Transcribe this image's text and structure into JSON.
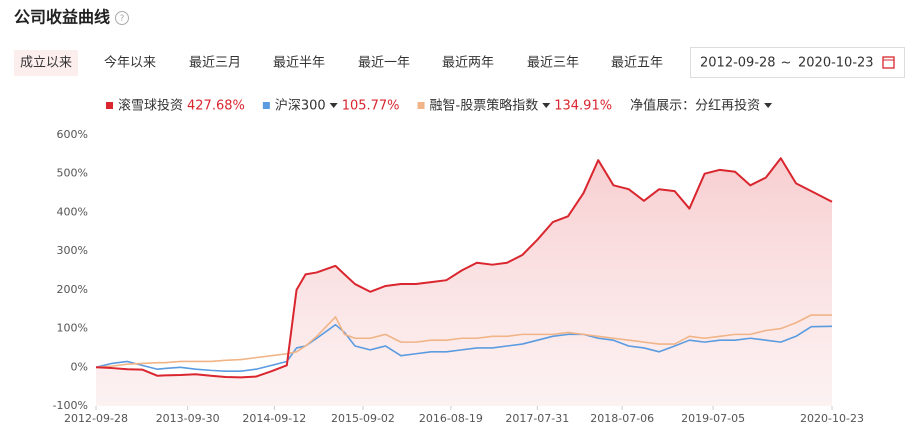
{
  "header": {
    "title": "公司收益曲线"
  },
  "tabs": [
    "成立以来",
    "今年以来",
    "最近三月",
    "最近半年",
    "最近一年",
    "最近两年",
    "最近三年",
    "最近五年"
  ],
  "active_tab": 0,
  "date_range": {
    "start": "2012-09-28",
    "separator": "~",
    "end": "2020-10-23"
  },
  "nav_display": "净值展示：分红再投资",
  "chart_data": {
    "type": "line",
    "x": [
      "2012-09-28",
      "2012-12-01",
      "2013-02-01",
      "2013-04-01",
      "2013-06-01",
      "2013-07-01",
      "2013-09-01",
      "2013-11-01",
      "2014-01-01",
      "2014-03-01",
      "2014-05-01",
      "2014-07-01",
      "2014-09-01",
      "2014-11-01",
      "2014-12-10",
      "2015-01-15",
      "2015-03-01",
      "2015-05-15",
      "2015-06-20",
      "2015-08-01",
      "2015-10-01",
      "2015-12-01",
      "2016-02-01",
      "2016-04-01",
      "2016-06-01",
      "2016-08-01",
      "2016-10-01",
      "2016-12-01",
      "2017-02-01",
      "2017-04-01",
      "2017-06-01",
      "2017-08-01",
      "2017-10-01",
      "2017-12-01",
      "2018-02-01",
      "2018-04-01",
      "2018-06-01",
      "2018-08-01",
      "2018-10-01",
      "2018-12-01",
      "2019-02-01",
      "2019-04-01",
      "2019-06-01",
      "2019-08-01",
      "2019-10-01",
      "2019-12-01",
      "2020-02-01",
      "2020-04-01",
      "2020-06-01",
      "2020-08-01",
      "2020-10-23"
    ],
    "series": [
      {
        "name": "滚雪球投资",
        "color": "#d9262f",
        "area": true,
        "value_label": "427.68%",
        "values": [
          0,
          -2,
          -5,
          -6,
          -22,
          -21,
          -20,
          -18,
          -22,
          -25,
          -26,
          -24,
          -10,
          5,
          200,
          240,
          245,
          262,
          240,
          215,
          195,
          210,
          215,
          215,
          220,
          225,
          250,
          270,
          265,
          270,
          290,
          330,
          375,
          390,
          450,
          535,
          470,
          460,
          430,
          460,
          455,
          410,
          500,
          510,
          505,
          470,
          490,
          540,
          475,
          455,
          427.68
        ]
      },
      {
        "name": "沪深300",
        "color": "#5b9be0",
        "area": false,
        "value_label": "105.77%",
        "values": [
          0,
          10,
          15,
          5,
          -5,
          -3,
          0,
          -5,
          -8,
          -10,
          -10,
          -5,
          5,
          15,
          50,
          55,
          75,
          110,
          90,
          55,
          45,
          55,
          30,
          35,
          40,
          40,
          45,
          50,
          50,
          55,
          60,
          70,
          80,
          85,
          85,
          75,
          70,
          55,
          50,
          40,
          55,
          70,
          65,
          70,
          70,
          75,
          70,
          65,
          80,
          105,
          105.77
        ]
      },
      {
        "name": "融智-股票策略指数",
        "color": "#f0b487",
        "area": false,
        "value_label": "134.91%",
        "values": [
          0,
          3,
          8,
          10,
          12,
          12,
          15,
          15,
          15,
          18,
          20,
          25,
          30,
          35,
          40,
          55,
          80,
          130,
          85,
          75,
          75,
          85,
          65,
          65,
          70,
          70,
          75,
          75,
          80,
          80,
          85,
          85,
          85,
          90,
          85,
          80,
          75,
          70,
          65,
          60,
          60,
          80,
          75,
          80,
          85,
          85,
          95,
          100,
          115,
          135,
          134.91
        ]
      }
    ],
    "xlim": [
      "2012-09-28",
      "2020-10-23"
    ],
    "xticks": [
      "2012-09-28",
      "2013-09-30",
      "2014-09-12",
      "2015-09-02",
      "2016-08-19",
      "2017-07-31",
      "2018-07-06",
      "2019-07-05",
      "2020-10-23"
    ],
    "ylim": [
      -100,
      600
    ],
    "yticks": [
      {
        "value": 600,
        "label": "600%"
      },
      {
        "value": 500,
        "label": "500%"
      },
      {
        "value": 400,
        "label": "400%"
      },
      {
        "value": 300,
        "label": "300%"
      },
      {
        "value": 200,
        "label": "200%"
      },
      {
        "value": 100,
        "label": "100%"
      },
      {
        "value": 0,
        "label": "0%"
      },
      {
        "value": -100,
        "label": "-100%"
      }
    ],
    "grid": false
  }
}
